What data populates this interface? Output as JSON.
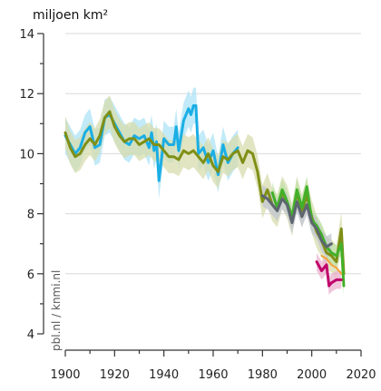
{
  "chart_data": {
    "type": "line",
    "title": "",
    "ylabel": "miljoen km²",
    "xlabel": "",
    "xlim": [
      1900,
      2020
    ],
    "ylim": [
      4,
      14
    ],
    "xticks": [
      1900,
      1920,
      1940,
      1960,
      1980,
      2000,
      2020
    ],
    "yticks": [
      4,
      6,
      8,
      10,
      12,
      14
    ],
    "grid": true,
    "credit": "pbl.nl / knmi.nl",
    "colors": {
      "blue": "#1aaee5",
      "blue_band": "#aee3f6",
      "olive": "#7f8f16",
      "olive_band": "#d7dcad",
      "green": "#43b02a",
      "green_band": "#bfe2a8",
      "gray": "#5d6570",
      "gray_band": "#c3c6d2",
      "magenta": "#c0006a",
      "magenta_band": "#ebb2cf",
      "orange": "#f2a23a",
      "grid": "#d9d9d9",
      "axis": "#333333"
    },
    "series": [
      {
        "key": "blue",
        "x": [
          1900,
          1902,
          1904,
          1906,
          1908,
          1910,
          1912,
          1914,
          1916,
          1918,
          1920,
          1922,
          1924,
          1926,
          1928,
          1930,
          1932,
          1934,
          1935,
          1936,
          1937,
          1938,
          1940,
          1942,
          1944,
          1945,
          1946,
          1948,
          1950,
          1951,
          1952,
          1953,
          1954,
          1956,
          1958,
          1960,
          1962,
          1964,
          1966,
          1968,
          1970
        ],
        "y": [
          10.6,
          10.3,
          10.0,
          10.2,
          10.7,
          10.9,
          10.2,
          10.3,
          11.2,
          11.3,
          11.0,
          10.7,
          10.4,
          10.3,
          10.6,
          10.5,
          10.6,
          10.2,
          10.7,
          10.1,
          10.4,
          9.1,
          10.5,
          10.3,
          10.3,
          10.9,
          10.1,
          11.1,
          11.5,
          11.3,
          11.6,
          11.6,
          10.0,
          10.2,
          9.7,
          10.1,
          9.3,
          10.3,
          9.7,
          10.0,
          10.2
        ],
        "band": 0.6
      },
      {
        "key": "olive",
        "x": [
          1900,
          1902,
          1904,
          1906,
          1908,
          1910,
          1912,
          1914,
          1916,
          1918,
          1920,
          1922,
          1924,
          1926,
          1928,
          1930,
          1932,
          1934,
          1936,
          1938,
          1940,
          1942,
          1944,
          1946,
          1948,
          1950,
          1952,
          1954,
          1956,
          1958,
          1960,
          1962,
          1964,
          1966,
          1968,
          1970,
          1972,
          1974,
          1976,
          1978,
          1980,
          1982,
          1984,
          1986,
          1988,
          1990,
          1992,
          1994,
          1996,
          1998,
          2000,
          2002,
          2004,
          2006,
          2008,
          2010,
          2012,
          2013
        ],
        "y": [
          10.7,
          10.2,
          9.9,
          10.0,
          10.3,
          10.5,
          10.3,
          10.6,
          11.2,
          11.4,
          10.9,
          10.6,
          10.4,
          10.5,
          10.5,
          10.3,
          10.4,
          10.5,
          10.3,
          10.3,
          10.1,
          9.9,
          9.9,
          9.8,
          10.1,
          10.0,
          10.1,
          9.9,
          9.7,
          10.0,
          9.6,
          9.4,
          9.9,
          9.8,
          10.0,
          10.1,
          9.7,
          10.1,
          10.0,
          9.4,
          8.4,
          8.8,
          8.3,
          8.1,
          8.7,
          8.4,
          7.8,
          8.7,
          8.1,
          8.6,
          7.9,
          7.4,
          7.1,
          6.7,
          6.6,
          6.4,
          7.5,
          6.0
        ],
        "band": 0.55
      },
      {
        "key": "green",
        "x": [
          1984,
          1986,
          1988,
          1990,
          1992,
          1994,
          1996,
          1998,
          2000,
          2002,
          2004,
          2006,
          2008,
          2010,
          2012,
          2013
        ],
        "y": [
          8.7,
          8.2,
          8.8,
          8.4,
          7.9,
          8.8,
          8.2,
          8.9,
          7.8,
          7.6,
          7.3,
          6.9,
          6.7,
          6.6,
          7.0,
          5.6
        ],
        "band": 0.35
      },
      {
        "key": "gray",
        "x": [
          1980,
          1982,
          1984,
          1986,
          1988,
          1990,
          1992,
          1994,
          1996,
          1998,
          2000,
          2002,
          2004,
          2006,
          2008
        ],
        "y": [
          8.6,
          8.5,
          8.3,
          8.1,
          8.5,
          8.3,
          7.7,
          8.4,
          7.9,
          8.3,
          7.7,
          7.5,
          7.1,
          6.9,
          7.0
        ],
        "band": 0.35
      },
      {
        "key": "magenta",
        "x": [
          2002,
          2004,
          2006,
          2007,
          2008,
          2010,
          2012
        ],
        "y": [
          6.4,
          6.1,
          6.3,
          5.6,
          5.7,
          5.8,
          5.8
        ],
        "band": 0.3
      },
      {
        "key": "orange",
        "x": [
          2004,
          2006,
          2008,
          2010,
          2012
        ],
        "y": [
          6.6,
          6.5,
          6.3,
          6.2,
          6.0
        ],
        "band": 0
      }
    ]
  }
}
